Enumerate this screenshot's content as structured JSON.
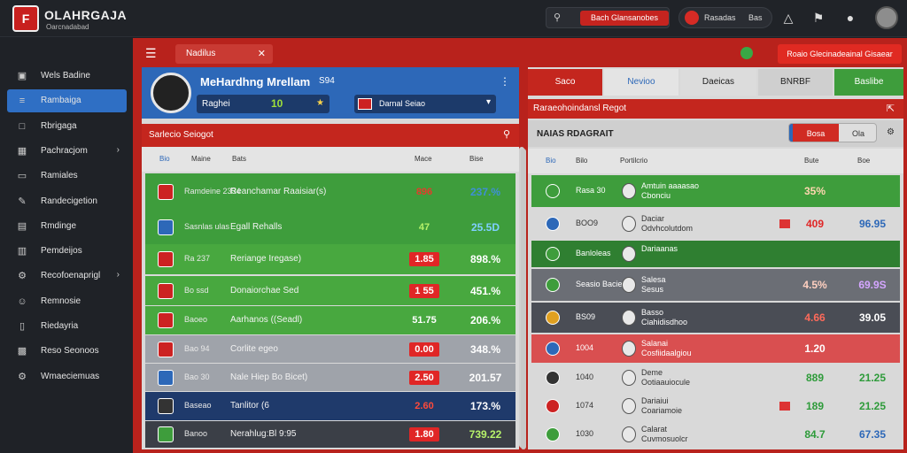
{
  "app": {
    "title": "OLAHRGAJA",
    "subtitle": "Oarcnadabad"
  },
  "topbar": {
    "search_icon": "search-icon",
    "live_label": "Bach Glansanobes",
    "pill_left": "Rasadas",
    "pill_right": "Bas",
    "icons": [
      "jersey-icon",
      "flag-icon",
      "user-icon"
    ]
  },
  "sidebar": {
    "items": [
      {
        "label": "Wels Badine",
        "icon": "dashboard-icon",
        "active": false,
        "chevron": false
      },
      {
        "label": "Rambaiga",
        "icon": "list-icon",
        "active": true,
        "chevron": false
      },
      {
        "label": "Rbrigaga",
        "icon": "square-icon",
        "active": false,
        "chevron": false
      },
      {
        "label": "Pachracjom",
        "icon": "calendar-icon",
        "active": false,
        "chevron": true
      },
      {
        "label": "Ramiales",
        "icon": "document-icon",
        "active": false,
        "chevron": false
      },
      {
        "label": "Randecigetion",
        "icon": "edit-icon",
        "active": false,
        "chevron": false
      },
      {
        "label": "Rmdinge",
        "icon": "chart-icon",
        "active": false,
        "chevron": false
      },
      {
        "label": "Pemdeijos",
        "icon": "table-icon",
        "active": false,
        "chevron": false
      },
      {
        "label": "Recofoenaprigl",
        "icon": "settings-icon",
        "active": false,
        "chevron": true
      },
      {
        "label": "Remnosie",
        "icon": "person-icon",
        "active": false,
        "chevron": false
      },
      {
        "label": "Riedayria",
        "icon": "chat-icon",
        "active": false,
        "chevron": false
      },
      {
        "label": "Reso Seonoos",
        "icon": "briefcase-icon",
        "active": false,
        "chevron": false
      },
      {
        "label": "Wmaeciemuas",
        "icon": "gear-icon",
        "active": false,
        "chevron": false
      }
    ]
  },
  "main_header": {
    "tab_label": "Nadilus",
    "action_label": "Roaio Glecinadeainal Gisaear"
  },
  "player": {
    "name": "MeHardhng Mrellam",
    "age": "S94",
    "stat_label": "Raghei",
    "stat_value": "10",
    "team_select": "Darnal Seiao"
  },
  "left_table": {
    "title": "Sarlecio Seiogot",
    "columns": [
      "Bio",
      "Maine",
      "Bats",
      "Mace",
      "Bise"
    ],
    "rows": [
      {
        "code": "Ramdeine 2334",
        "name": "Reanchamar Raaisiar(s)",
        "rate": "896",
        "pct": "237.%",
        "bg": "#3e9d3c",
        "rate_bg": "transparent",
        "rate_color": "#e53b2b",
        "pct_color": "#3e8fd6"
      },
      {
        "code": "Sasnlas ulas",
        "name": "Egall Rehalls",
        "rate": "47",
        "pct": "25.5D",
        "bg": "#3e9d3c",
        "rate_bg": "transparent",
        "rate_color": "#b6f26a",
        "pct_color": "#7fd0ff"
      },
      {
        "code": "Ra 237",
        "name": "Reriange Iregase)",
        "rate": "1.85",
        "pct": "898.%",
        "bg": "#48a83f",
        "rate_bg": "#e02626",
        "rate_color": "#fff",
        "pct_color": "#fff"
      },
      {
        "code": "Bo ssd",
        "name": "Donaiorchae Sed",
        "rate": "1 55",
        "pct": "451.%",
        "bg": "#48a83f",
        "rate_bg": "#e02626",
        "rate_color": "#fff",
        "pct_color": "#fff"
      },
      {
        "code": "Baoeo",
        "name": "Aarhanos ((Seadl)",
        "rate": "51.75",
        "pct": "206.%",
        "bg": "#48a83f",
        "rate_bg": "transparent",
        "rate_color": "#fff",
        "pct_color": "#fff"
      },
      {
        "code": "Bao 94",
        "name": "Corlite egeo",
        "rate": "0.00",
        "pct": "348.%",
        "bg": "#9fa3aa",
        "rate_bg": "#e02626",
        "rate_color": "#fff",
        "pct_color": "#fff"
      },
      {
        "code": "Bao 30",
        "name": "Nale Hiep Bo Bicet)",
        "rate": "2.50",
        "pct": "201.57",
        "bg": "#9fa3aa",
        "rate_bg": "#e02626",
        "rate_color": "#fff",
        "pct_color": "#fff"
      },
      {
        "code": "Baseao",
        "name": "Tanlitor (6",
        "rate": "2.60",
        "pct": "173.%",
        "bg": "#1f3a6b",
        "rate_bg": "transparent",
        "rate_color": "#ff4a3a",
        "pct_color": "#fff"
      },
      {
        "code": "Banoo",
        "name": "Nerahlug:Bl 9:95",
        "rate": "1.80",
        "pct": "739.22",
        "bg": "#3b3f47",
        "rate_bg": "#e02626",
        "rate_color": "#fff",
        "pct_color": "#b6f26a"
      }
    ]
  },
  "right_panel": {
    "tabs": [
      {
        "label": "Saco",
        "bg": "#c4261e",
        "color": "#fff"
      },
      {
        "label": "Nevioo",
        "bg": "#e4e4e4",
        "color": "#2d68b8"
      },
      {
        "label": "Daeicas",
        "bg": "#dcdcdc",
        "color": "#222"
      },
      {
        "label": "BNRBF",
        "bg": "#cfcfcf",
        "color": "#222"
      },
      {
        "label": "Baslibe",
        "bg": "#3e9d3c",
        "color": "#fff"
      }
    ],
    "bar_label": "Raraeohoindansl Regot",
    "sub_label": "NAIAS RDAGRAIT",
    "seg_a": "Bosa",
    "seg_b": "Ola",
    "columns": [
      "Bio",
      "Bilo",
      "Portilcrio",
      "Bute",
      "Boe"
    ],
    "rows": [
      {
        "code": "Rasa 30",
        "name": "Amtuin aaaasao\nCbonciu",
        "rate": "35%",
        "right": "",
        "bg": "#3e9d3c",
        "text": "#fff",
        "rate_color": "#ffd7b0",
        "right_color": "#fff",
        "flag": false
      },
      {
        "code": "BOO9",
        "name": "Daciar\nOdvhcolutdom",
        "rate": "409",
        "right": "96.95",
        "bg": "#d9d9d9",
        "text": "#333",
        "rate_color": "#e02626",
        "right_color": "#2d68b8",
        "flag": true
      },
      {
        "code": "Banloleas",
        "name": "Dariaanas",
        "rate": "",
        "right": "",
        "bg": "#2f7f31",
        "text": "#fff",
        "rate_color": "#fff",
        "right_color": "#fff",
        "flag": false
      },
      {
        "code": "Seasio Bacieas",
        "name": "Salesa\nSesus",
        "rate": "4.5%",
        "right": "69.9S",
        "bg": "#6b6e75",
        "text": "#fff",
        "rate_color": "#ffd0c0",
        "right_color": "#d4a6ff",
        "flag": false
      },
      {
        "code": "BS09",
        "name": "Basso\nCiahidisdhoo",
        "rate": "4.66",
        "right": "39.05",
        "bg": "#4a4d55",
        "text": "#fff",
        "rate_color": "#ff6a5a",
        "right_color": "#fff",
        "flag": false
      },
      {
        "code": "1004",
        "name": "Salanai\nCosfiidaalgiou",
        "rate": "1.20",
        "right": "",
        "bg": "#d94f50",
        "text": "#fff",
        "rate_color": "#fff",
        "right_color": "#fff",
        "flag": false
      },
      {
        "code": "1040",
        "name": "Deme\nOotiaauiocule",
        "rate": "889",
        "right": "21.25",
        "bg": "#d9d9d9",
        "text": "#333",
        "rate_color": "#2e9b3a",
        "right_color": "#2e9b3a",
        "flag": false
      },
      {
        "code": "1074",
        "name": "Dariaiui\nCoariamoie",
        "rate": "189",
        "right": "21.25",
        "bg": "#d9d9d9",
        "text": "#333",
        "rate_color": "#2e9b3a",
        "right_color": "#2e9b3a",
        "flag": true
      },
      {
        "code": "1030",
        "name": "Calarat\nCuvmosuolcr",
        "rate": "84.7",
        "right": "67.35",
        "bg": "#d9d9d9",
        "text": "#333",
        "rate_color": "#2e9b3a",
        "right_color": "#2d68b8",
        "flag": false
      }
    ]
  }
}
